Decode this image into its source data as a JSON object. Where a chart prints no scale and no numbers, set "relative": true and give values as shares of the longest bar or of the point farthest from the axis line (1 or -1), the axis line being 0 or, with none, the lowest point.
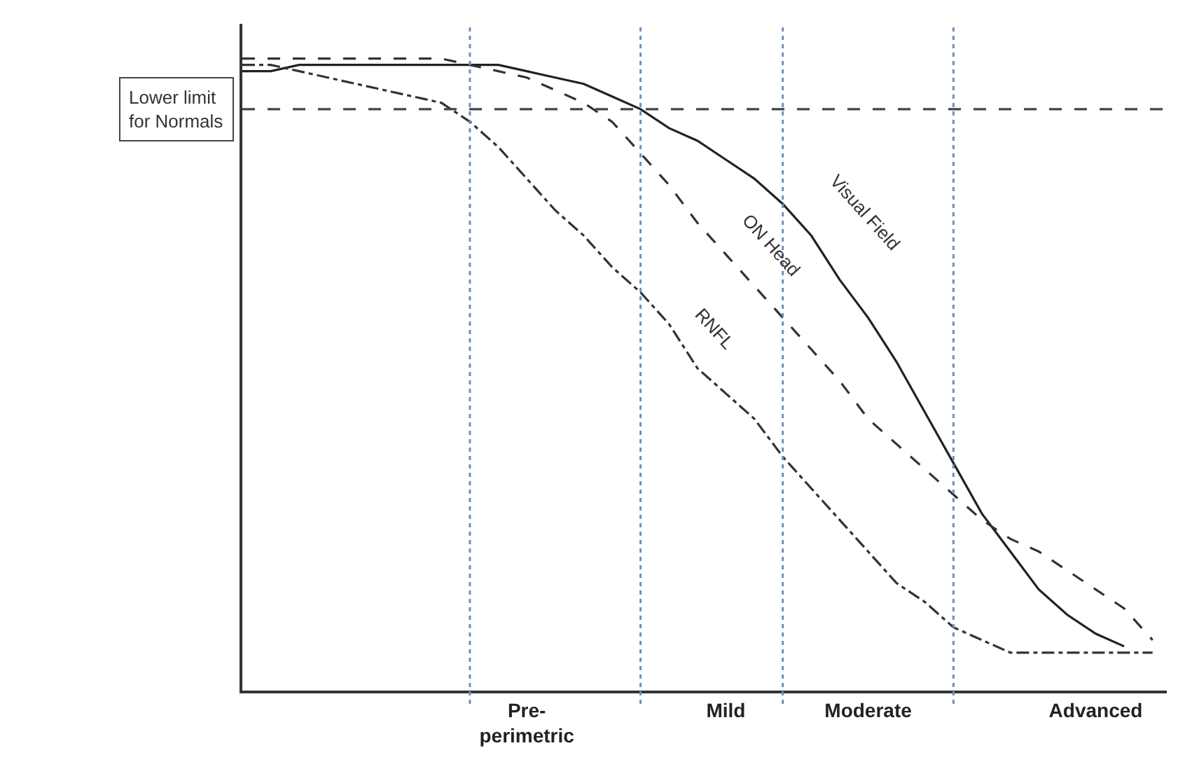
{
  "chart_data": {
    "type": "line",
    "relative": true,
    "tick_labels": "x",
    "grid": "x",
    "legend": false,
    "marker": "none",
    "categories": [
      null,
      null,
      null,
      null,
      null,
      null,
      null,
      null,
      null,
      null,
      "Pre-\nperimetric",
      null,
      null,
      null,
      null,
      null,
      null,
      "Mild",
      null,
      null,
      null,
      null,
      "Moderate",
      null,
      null,
      null,
      null,
      null,
      null,
      null,
      "Advanced",
      null,
      null
    ],
    "series": [
      {
        "name": "Visual Field",
        "color": "#222222",
        "line_style": "solid",
        "values": [
          0.98,
          0.98,
          0.99,
          0.99,
          0.99,
          0.99,
          0.99,
          0.99,
          0.99,
          0.99,
          0.98,
          0.97,
          0.96,
          0.94,
          0.92,
          0.89,
          0.87,
          0.84,
          0.81,
          0.77,
          0.72,
          0.65,
          0.59,
          0.52,
          0.44,
          0.36,
          0.28,
          0.22,
          0.16,
          0.12,
          0.09,
          0.07,
          null
        ]
      },
      {
        "name": "ON Head",
        "color": "#333333",
        "line_style": "dashed",
        "values": [
          1.0,
          1.0,
          1.0,
          1.0,
          1.0,
          1.0,
          1.0,
          1.0,
          0.99,
          0.98,
          0.97,
          0.95,
          0.93,
          0.9,
          0.85,
          0.8,
          0.74,
          0.69,
          0.64,
          0.59,
          0.54,
          0.49,
          0.43,
          0.39,
          0.35,
          0.31,
          0.27,
          0.24,
          0.22,
          0.19,
          0.16,
          0.13,
          0.08
        ]
      },
      {
        "name": "RNFL",
        "color": "#333333",
        "line_style": "dashdot",
        "values": [
          0.99,
          0.99,
          0.98,
          0.97,
          0.96,
          0.95,
          0.94,
          0.93,
          0.9,
          0.86,
          0.81,
          0.76,
          0.72,
          0.67,
          0.63,
          0.58,
          0.51,
          0.47,
          0.43,
          0.37,
          0.32,
          0.27,
          0.22,
          0.17,
          0.14,
          0.1,
          0.08,
          0.06,
          0.06,
          0.06,
          0.06,
          0.06,
          0.06
        ]
      }
    ],
    "ref_lines": [
      {
        "axis": "y",
        "value": 0.92,
        "label": "Lower limit\nfor Normals",
        "color": "#444444",
        "line_style": "dashed"
      }
    ]
  }
}
